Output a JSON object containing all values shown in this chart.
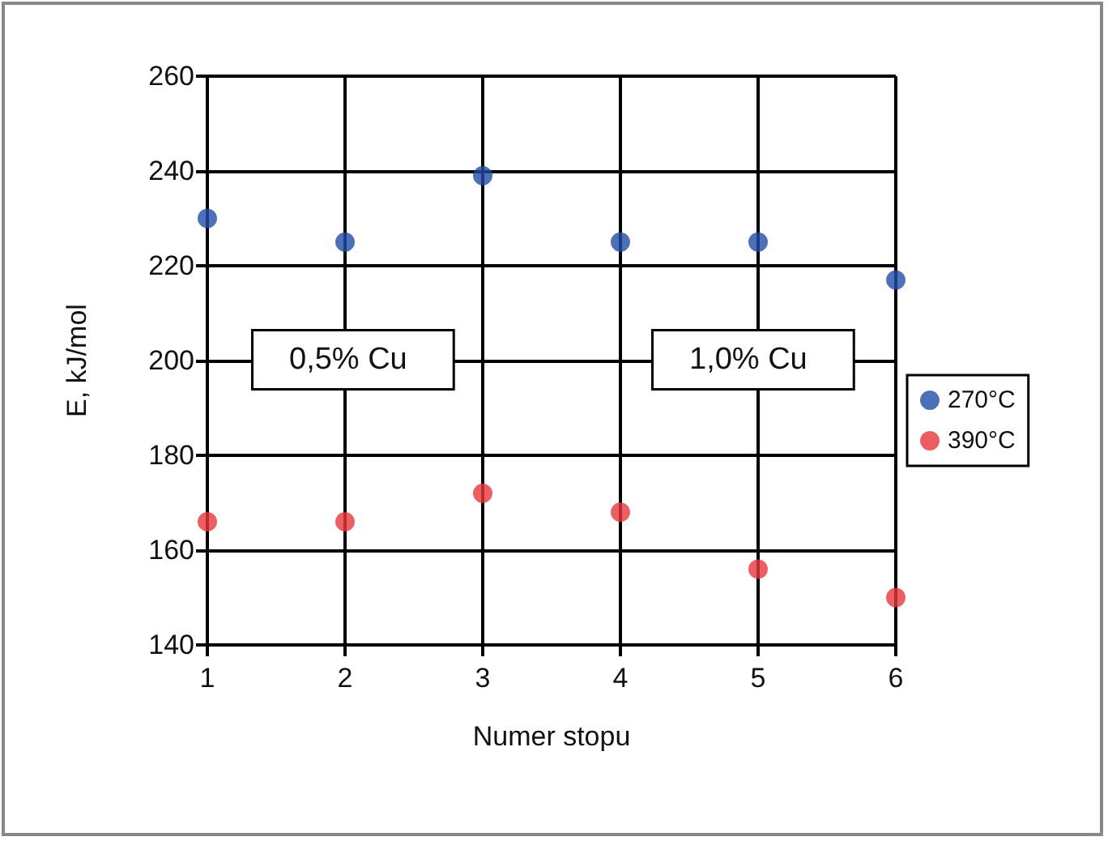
{
  "chart_data": {
    "type": "scatter",
    "xlabel": "Numer stopu",
    "ylabel": "E, kJ/mol",
    "x": [
      1,
      2,
      3,
      4,
      5,
      6
    ],
    "series": [
      {
        "name": "270°C",
        "color": "#1f4ea8",
        "values": [
          230,
          225,
          239,
          225,
          225,
          217
        ]
      },
      {
        "name": "390°C",
        "color": "#e8363b",
        "values": [
          166,
          166,
          172,
          168,
          156,
          150
        ]
      }
    ],
    "xlim": [
      1,
      6
    ],
    "xticks": [
      1,
      2,
      3,
      4,
      5,
      6
    ],
    "ylim": [
      140,
      260
    ],
    "yticks": [
      140,
      160,
      180,
      200,
      220,
      240,
      260
    ],
    "grid": true,
    "legend": "right",
    "marker": "circle",
    "annotations": [
      "0,5% Cu",
      "1,0% Cu"
    ]
  }
}
